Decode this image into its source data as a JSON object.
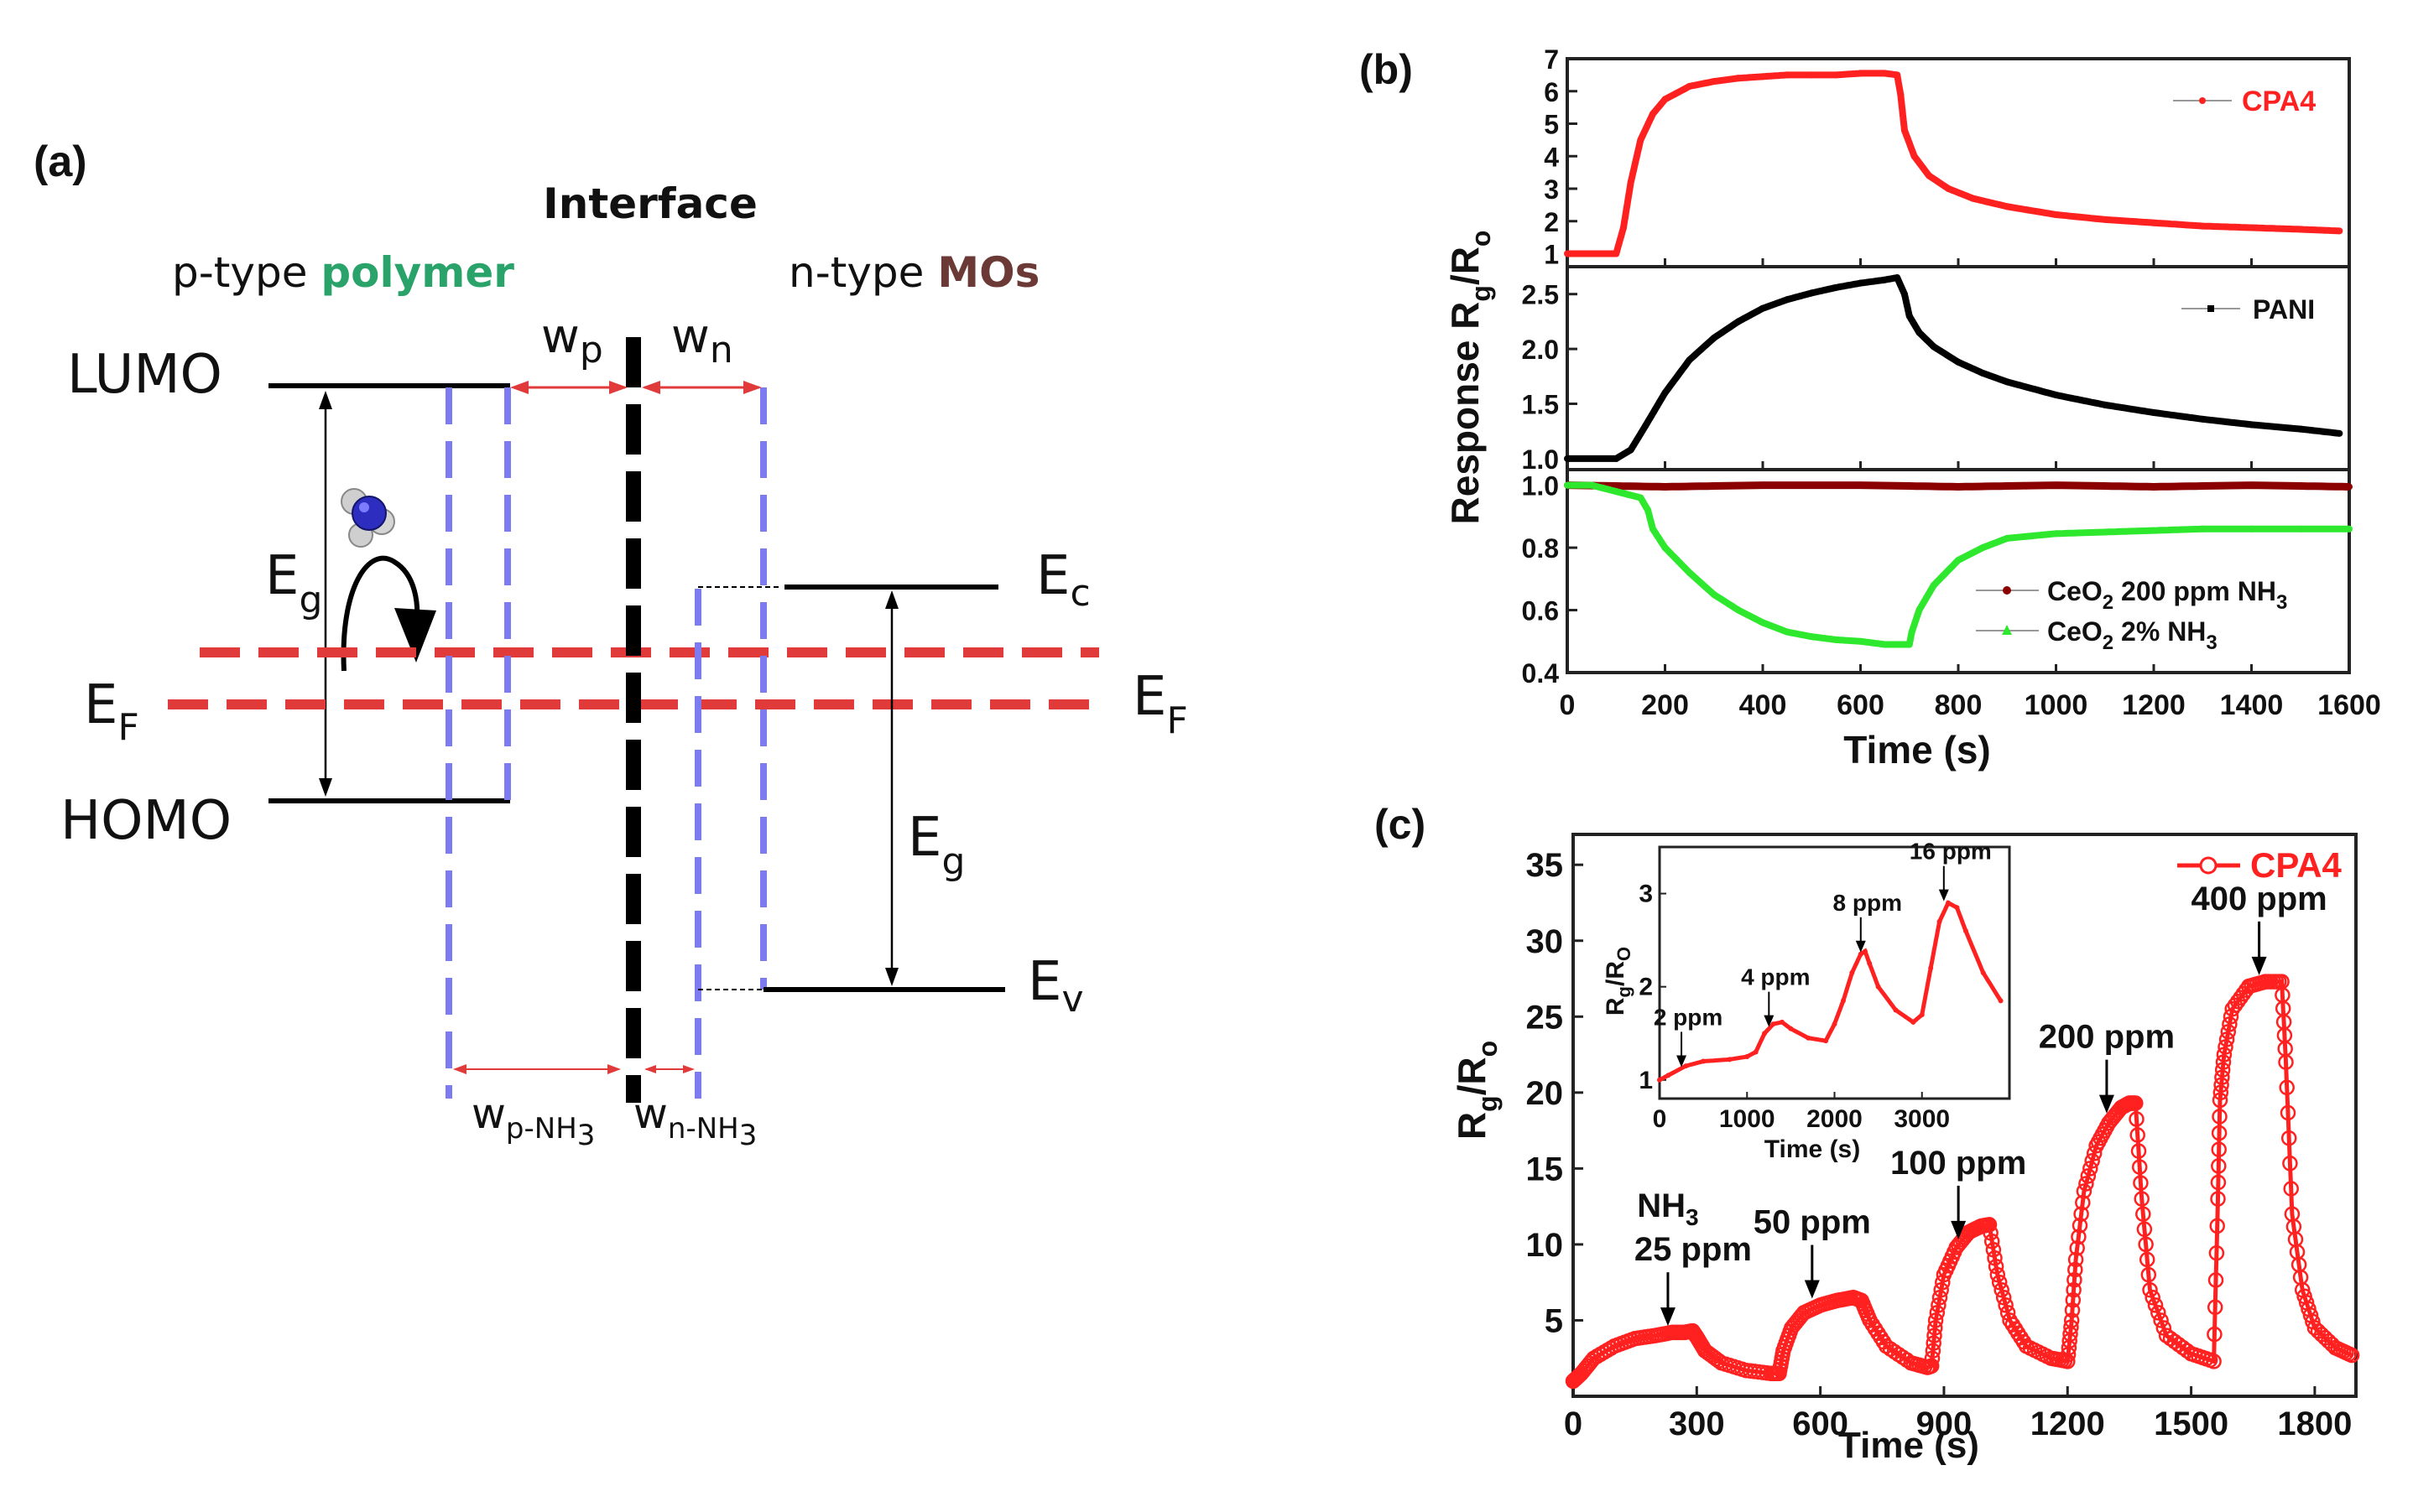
{
  "panel_a": {
    "label": "(a)",
    "interface": "Interface",
    "left_prefix": "p-type ",
    "left_strong": "polymer",
    "right_prefix": "n-type ",
    "right_strong": "MOs",
    "lumo": "LUMO",
    "homo": "HOMO",
    "eg_main": "E",
    "eg_sub": "g",
    "ef_main": "E",
    "ef_sub": "F",
    "ec_main": "E",
    "ec_sub": "c",
    "ev_main": "E",
    "ev_sub": "v",
    "wp_main": "w",
    "wp_sub": "p",
    "wn_main": "w",
    "wn_sub": "n",
    "wpnh3_main": "w",
    "wpnh3_sub": "p-NH",
    "wnnh3_main": "w",
    "wnnh3_sub": "n-NH",
    "sub3": "3",
    "colors": {
      "polymer": "#2aa36b",
      "mos": "#6b3a36",
      "ef": "#e03a3a",
      "dash": "#7c7cf0"
    }
  },
  "chart_data": [
    {
      "panel": "(b)",
      "type": "line",
      "title": "",
      "xlabel": "Time (s)",
      "ylabel_main": "Response  R",
      "ylabel_sub": "g",
      "ylabel_rest": "/R",
      "ylabel_sub2": "o",
      "xlim": [
        0,
        1600
      ],
      "xticks": [
        0,
        200,
        400,
        600,
        800,
        1000,
        1200,
        1400,
        1600
      ],
      "subplots": [
        {
          "ylim": [
            0.6,
            7
          ],
          "yticks": [
            1,
            2,
            3,
            4,
            5,
            6,
            7
          ],
          "series": [
            {
              "name": "CPA4",
              "color": "#ff2020",
              "x": [
                0,
                100,
                115,
                130,
                150,
                175,
                200,
                250,
                300,
                350,
                400,
                450,
                500,
                550,
                600,
                650,
                675,
                682,
                690,
                710,
                740,
                780,
                830,
                900,
                1000,
                1100,
                1200,
                1300,
                1400,
                1500,
                1580
              ],
              "y": [
                1,
                1,
                1.8,
                3.2,
                4.5,
                5.3,
                5.75,
                6.15,
                6.3,
                6.4,
                6.45,
                6.5,
                6.5,
                6.5,
                6.55,
                6.55,
                6.5,
                5.9,
                4.8,
                4.0,
                3.4,
                3.0,
                2.7,
                2.45,
                2.2,
                2.05,
                1.95,
                1.85,
                1.8,
                1.75,
                1.7
              ]
            }
          ]
        },
        {
          "ylim": [
            0.9,
            2.75
          ],
          "yticks": [
            1.0,
            1.5,
            2.0,
            2.5
          ],
          "series": [
            {
              "name": "PANI",
              "color": "#000000",
              "x": [
                0,
                100,
                130,
                160,
                200,
                250,
                300,
                350,
                400,
                450,
                500,
                550,
                600,
                650,
                675,
                690,
                700,
                720,
                750,
                800,
                850,
                900,
                1000,
                1100,
                1200,
                1300,
                1400,
                1500,
                1580
              ],
              "y": [
                1,
                1,
                1.08,
                1.3,
                1.6,
                1.9,
                2.1,
                2.25,
                2.37,
                2.45,
                2.51,
                2.56,
                2.6,
                2.63,
                2.65,
                2.5,
                2.3,
                2.15,
                2.02,
                1.88,
                1.78,
                1.7,
                1.58,
                1.49,
                1.42,
                1.36,
                1.31,
                1.27,
                1.23
              ]
            }
          ]
        },
        {
          "ylim": [
            0.4,
            1.05
          ],
          "yticks": [
            0.4,
            0.6,
            0.8,
            1.0
          ],
          "series": [
            {
              "name": "CeO2 200 ppm NH3",
              "label_main": "CeO",
              "label_sub": "2",
              "label_rest": " 200 ppm NH",
              "label_sub2": "3",
              "color": "#8b0000",
              "x": [
                0,
                200,
                400,
                600,
                800,
                1000,
                1200,
                1400,
                1600
              ],
              "y": [
                1.0,
                0.995,
                1.0,
                1.0,
                0.995,
                1.0,
                0.995,
                1.0,
                0.995
              ]
            },
            {
              "name": "CeO2 2% NH3",
              "label_main": "CeO",
              "label_sub": "2",
              "label_rest": " 2% NH",
              "label_sub2": "3",
              "color": "#2ee82e",
              "x": [
                0,
                50,
                100,
                150,
                165,
                175,
                200,
                250,
                300,
                350,
                400,
                450,
                500,
                550,
                600,
                650,
                680,
                700,
                705,
                720,
                750,
                800,
                850,
                900,
                1000,
                1100,
                1200,
                1300,
                1400,
                1500,
                1600
              ],
              "y": [
                1.0,
                1.0,
                0.98,
                0.96,
                0.92,
                0.86,
                0.8,
                0.72,
                0.65,
                0.6,
                0.56,
                0.53,
                0.515,
                0.505,
                0.5,
                0.49,
                0.49,
                0.49,
                0.53,
                0.6,
                0.68,
                0.76,
                0.8,
                0.83,
                0.845,
                0.85,
                0.855,
                0.86,
                0.86,
                0.86,
                0.86
              ]
            }
          ]
        }
      ]
    },
    {
      "panel": "(c)",
      "type": "line",
      "xlabel": "Time (s)",
      "ylabel_main": "R",
      "ylabel_sub": "g",
      "ylabel_rest": "/R",
      "ylabel_sub2": "o",
      "xlim": [
        0,
        1900
      ],
      "ylim": [
        0,
        37
      ],
      "xticks": [
        0,
        300,
        600,
        900,
        1200,
        1500,
        1800
      ],
      "yticks": [
        5,
        10,
        15,
        20,
        25,
        30,
        35
      ],
      "legend": "CPA4",
      "series": [
        {
          "name": "CPA4",
          "color": "#ff2020",
          "x": [
            0,
            20,
            50,
            100,
            150,
            200,
            240,
            270,
            290,
            300,
            320,
            360,
            420,
            480,
            500,
            510,
            530,
            560,
            600,
            640,
            680,
            700,
            720,
            760,
            820,
            860,
            870,
            880,
            900,
            930,
            960,
            990,
            1010,
            1030,
            1060,
            1100,
            1160,
            1200,
            1210,
            1220,
            1240,
            1270,
            1300,
            1330,
            1350,
            1365,
            1380,
            1400,
            1440,
            1500,
            1555,
            1565,
            1570,
            1580,
            1600,
            1640,
            1680,
            1720,
            1730,
            1745,
            1770,
            1800,
            1850,
            1890
          ],
          "y": [
            1,
            1.5,
            2.5,
            3.3,
            3.8,
            4.0,
            4.2,
            4.2,
            4.3,
            3.9,
            3.0,
            2.2,
            1.7,
            1.5,
            1.5,
            3.0,
            4.5,
            5.5,
            6.0,
            6.3,
            6.5,
            6.3,
            5.0,
            3.3,
            2.2,
            1.9,
            2.0,
            5.0,
            8.0,
            9.8,
            10.8,
            11.2,
            11.3,
            8.0,
            5.0,
            3.3,
            2.5,
            2.3,
            5.0,
            9.0,
            13.5,
            16.5,
            18.0,
            19.0,
            19.3,
            19.3,
            13.0,
            7.0,
            4.0,
            2.8,
            2.3,
            13.0,
            19.5,
            22.5,
            25.5,
            27.0,
            27.3,
            27.3,
            22.0,
            12.0,
            7.0,
            4.5,
            3.2,
            2.7
          ]
        }
      ],
      "annotations": [
        {
          "label_main": "NH",
          "label_sub": "3",
          "label": "25 ppm",
          "x": 230,
          "y": 4.3
        },
        {
          "label": "50 ppm",
          "x": 580,
          "y": 6.1
        },
        {
          "label": "100 ppm",
          "x": 935,
          "y": 10.0
        },
        {
          "label": "200 ppm",
          "x": 1295,
          "y": 18.3
        },
        {
          "label": "400 ppm",
          "x": 1665,
          "y": 27.4
        }
      ],
      "inset": {
        "xlabel": "Time (s)",
        "ylabel_main": "R",
        "ylabel_sub": "g",
        "ylabel_rest": "/R",
        "ylabel_sub2": "O",
        "xlim": [
          0,
          4000
        ],
        "ylim": [
          0.8,
          3.5
        ],
        "xticks": [
          0,
          1000,
          2000,
          3000
        ],
        "yticks": [
          1,
          2,
          3
        ],
        "series": [
          {
            "name": "CPA4",
            "color": "#ff2020",
            "x": [
              0,
              100,
              300,
              500,
              800,
              1000,
              1100,
              1200,
              1300,
              1400,
              1500,
              1700,
              1900,
              2000,
              2100,
              2200,
              2300,
              2350,
              2400,
              2500,
              2700,
              2900,
              3000,
              3100,
              3200,
              3300,
              3400,
              3500,
              3700,
              3900
            ],
            "y": [
              1.0,
              1.05,
              1.15,
              1.2,
              1.22,
              1.25,
              1.3,
              1.5,
              1.6,
              1.62,
              1.55,
              1.45,
              1.42,
              1.6,
              1.85,
              2.15,
              2.35,
              2.38,
              2.25,
              2.0,
              1.75,
              1.62,
              1.7,
              2.2,
              2.7,
              2.9,
              2.85,
              2.6,
              2.15,
              1.85
            ]
          }
        ],
        "annotations": [
          {
            "label": "2 ppm",
            "x": 250,
            "y": 1.12
          },
          {
            "label": "4 ppm",
            "x": 1250,
            "y": 1.55
          },
          {
            "label": "8 ppm",
            "x": 2300,
            "y": 2.35
          },
          {
            "label": "16 ppm",
            "x": 3250,
            "y": 2.9
          }
        ]
      }
    }
  ]
}
